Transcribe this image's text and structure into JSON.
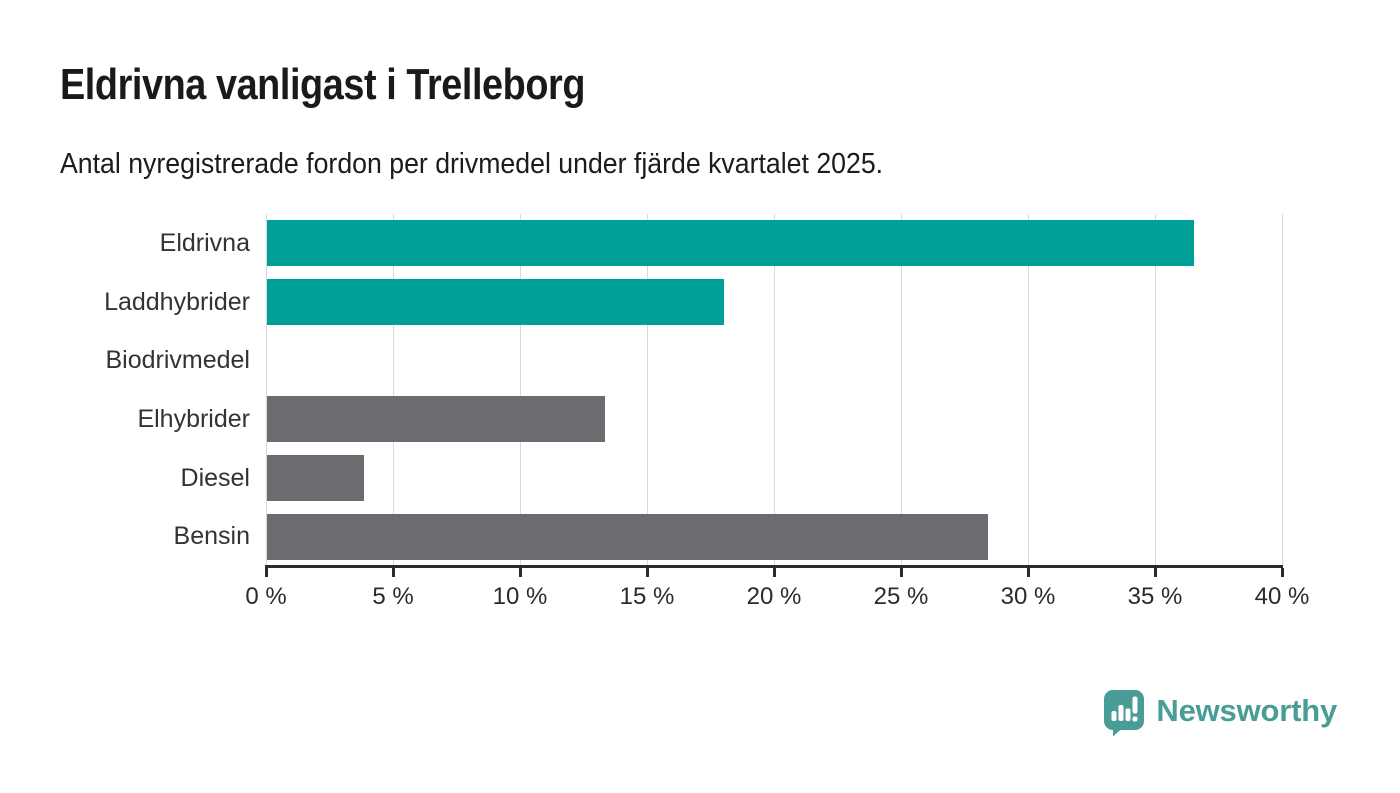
{
  "chart_data": {
    "type": "bar",
    "orientation": "horizontal",
    "title": "Eldrivna vanligast i Trelleborg",
    "subtitle": "Antal nyregistrerade fordon per drivmedel under fjärde kvartalet 2025.",
    "categories": [
      "Eldrivna",
      "Laddhybrider",
      "Biodrivmedel",
      "Elhybrider",
      "Diesel",
      "Bensin"
    ],
    "values": [
      36.5,
      18.0,
      0,
      13.3,
      3.8,
      28.4
    ],
    "unit": "%",
    "bar_colors": [
      "#00A099",
      "#00A099",
      "#6C6C70",
      "#6C6C70",
      "#6C6C70",
      "#6C6C70"
    ],
    "highlight_color": "#00A099",
    "default_color": "#6C6C70",
    "xlim": [
      0,
      40
    ],
    "x_ticks": [
      0,
      5,
      10,
      15,
      20,
      25,
      30,
      35,
      40
    ],
    "x_tick_labels": [
      "0 %",
      "5 %",
      "10 %",
      "15 %",
      "20 %",
      "25 %",
      "30 %",
      "35 %",
      "40 %"
    ],
    "grid": "vertical",
    "gridline_color": "#d9d9d9",
    "axis_color": "#2b2b2b",
    "legend": "none"
  },
  "footer": {
    "brand": "Newsworthy",
    "brand_color": "#4A9C97",
    "icon": "speech-bubble-bar-chart"
  }
}
